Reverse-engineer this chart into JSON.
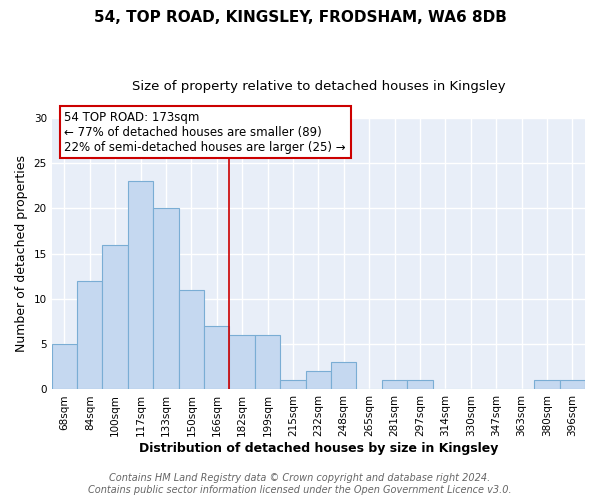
{
  "title": "54, TOP ROAD, KINGSLEY, FRODSHAM, WA6 8DB",
  "subtitle": "Size of property relative to detached houses in Kingsley",
  "xlabel": "Distribution of detached houses by size in Kingsley",
  "ylabel": "Number of detached properties",
  "bar_labels": [
    "68sqm",
    "84sqm",
    "100sqm",
    "117sqm",
    "133sqm",
    "150sqm",
    "166sqm",
    "182sqm",
    "199sqm",
    "215sqm",
    "232sqm",
    "248sqm",
    "265sqm",
    "281sqm",
    "297sqm",
    "314sqm",
    "330sqm",
    "347sqm",
    "363sqm",
    "380sqm",
    "396sqm"
  ],
  "bar_values": [
    5,
    12,
    16,
    23,
    20,
    11,
    7,
    6,
    6,
    1,
    2,
    3,
    0,
    1,
    1,
    0,
    0,
    0,
    0,
    1,
    1
  ],
  "bar_color": "#c5d8f0",
  "bar_edge_color": "#7aadd4",
  "ylim": [
    0,
    30
  ],
  "yticks": [
    0,
    5,
    10,
    15,
    20,
    25,
    30
  ],
  "vline_x": 6.5,
  "vline_color": "#cc0000",
  "annotation_box_text_line1": "54 TOP ROAD: 173sqm",
  "annotation_box_text_line2": "← 77% of detached houses are smaller (89)",
  "annotation_box_text_line3": "22% of semi-detached houses are larger (25) →",
  "annotation_box_edgecolor": "#cc0000",
  "footer_line1": "Contains HM Land Registry data © Crown copyright and database right 2024.",
  "footer_line2": "Contains public sector information licensed under the Open Government Licence v3.0.",
  "fig_background_color": "#ffffff",
  "plot_background_color": "#e8eef8",
  "grid_color": "#ffffff",
  "title_fontsize": 11,
  "subtitle_fontsize": 9.5,
  "axis_label_fontsize": 9,
  "tick_fontsize": 7.5,
  "footer_fontsize": 7,
  "annotation_fontsize": 8.5
}
